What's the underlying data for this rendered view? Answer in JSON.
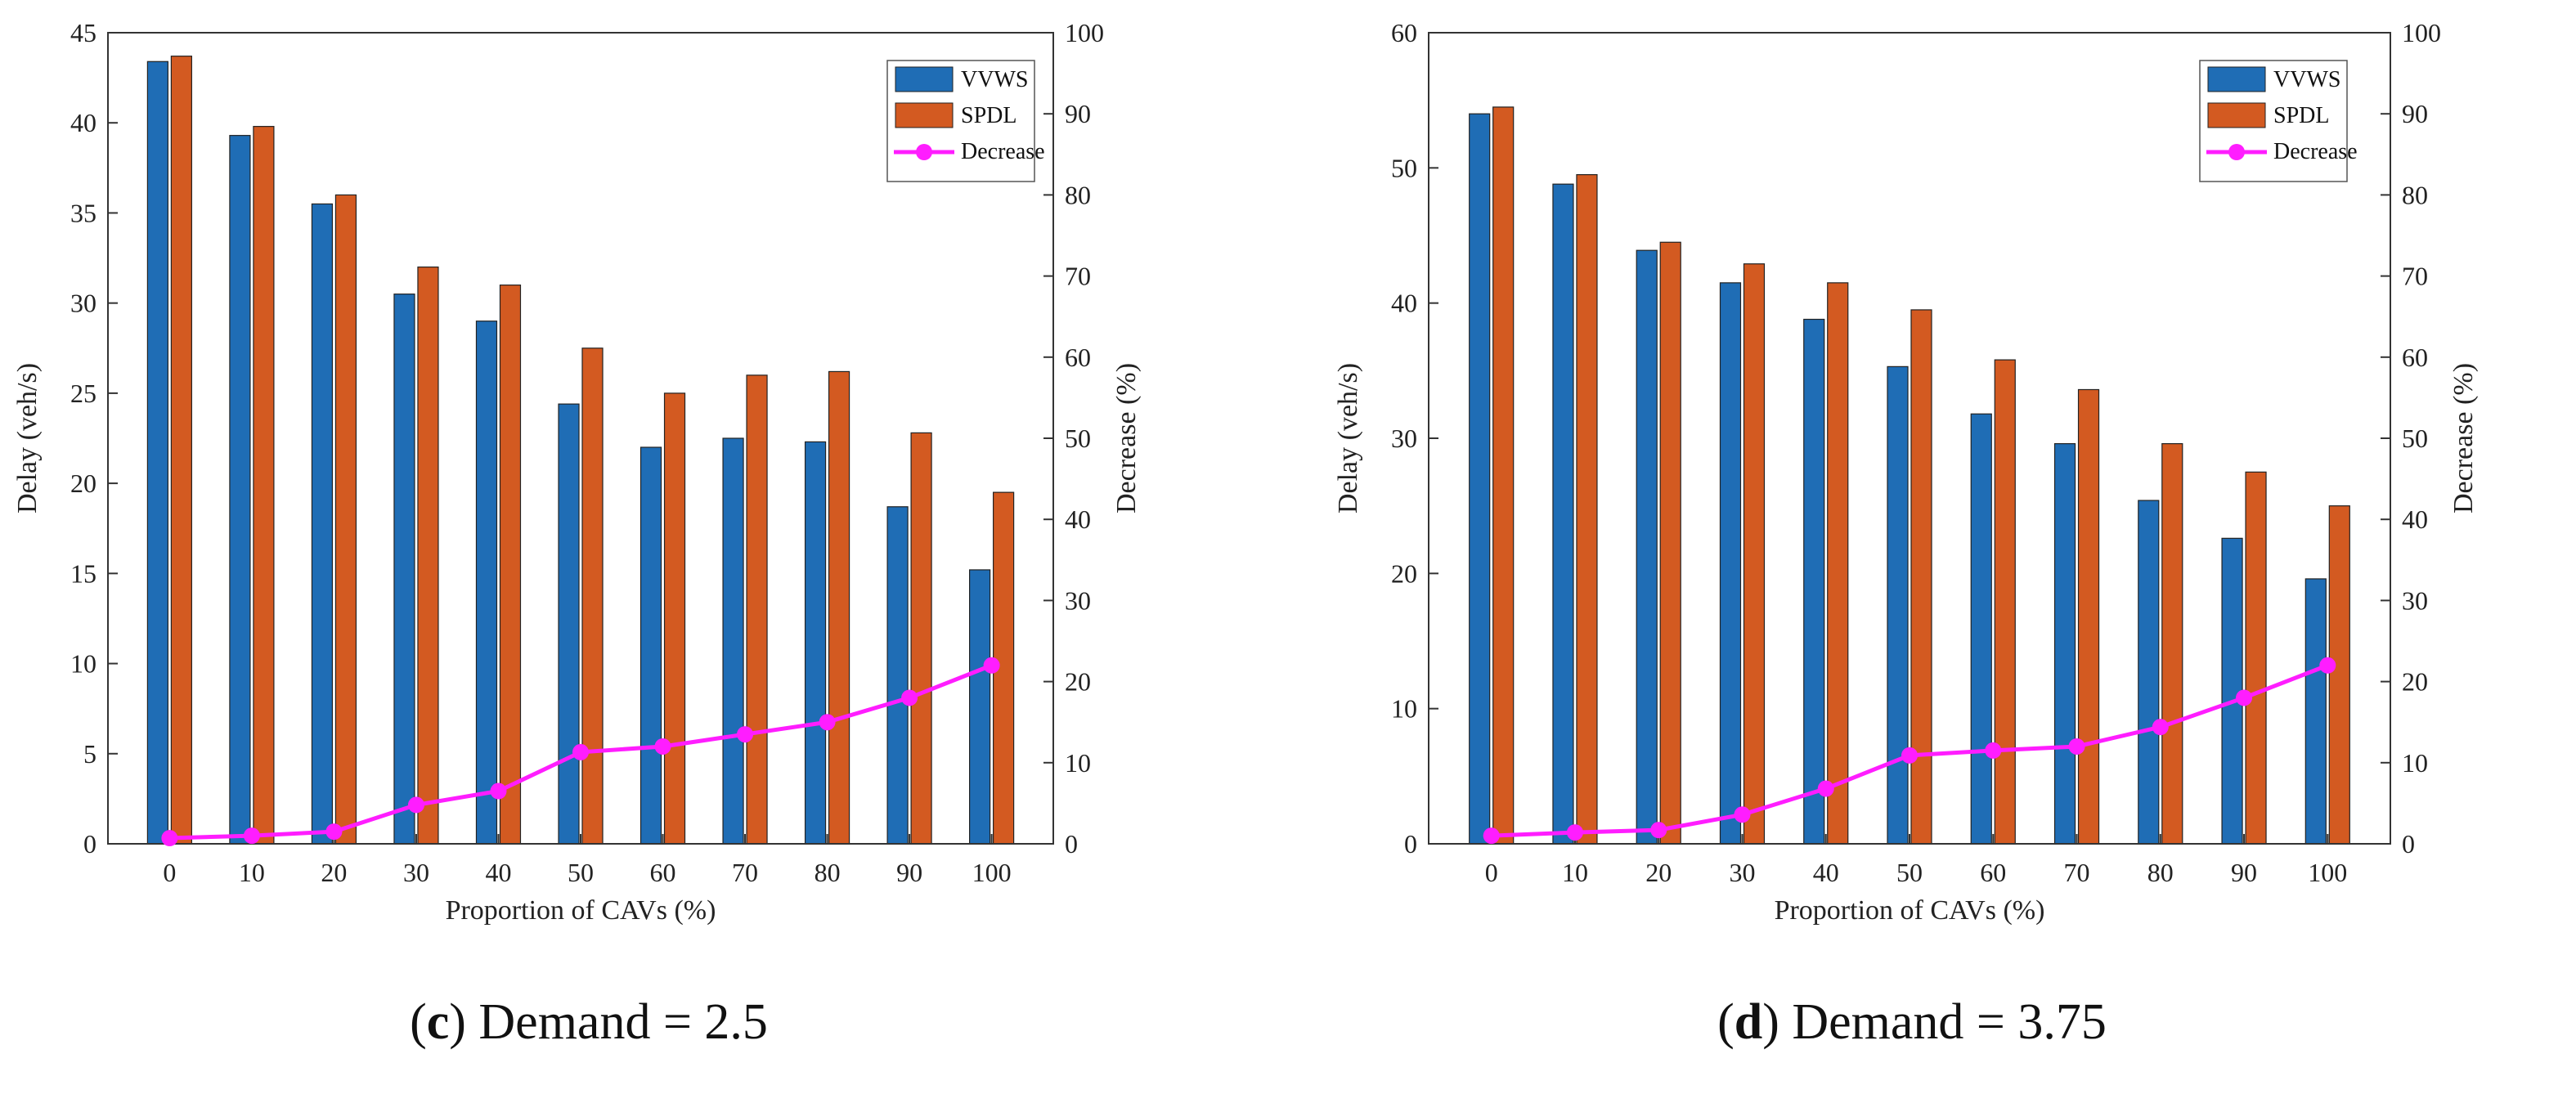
{
  "colors": {
    "vvws": "#1f6db5",
    "spdl": "#d35a21",
    "decrease": "#ff1dff",
    "axis": "#333333"
  },
  "chart_data": [
    {
      "type": "bar",
      "caption_letter": "c",
      "caption_rest": ") Demand = 2.5",
      "caption_open": "(",
      "categories": [
        "0",
        "10",
        "20",
        "30",
        "40",
        "50",
        "60",
        "70",
        "80",
        "90",
        "100"
      ],
      "xlabel": "Proportion of CAVs (%)",
      "ylabel": "Delay (veh/s)",
      "y2label": "Decrease (%)",
      "ylim": [
        0,
        45
      ],
      "yticks": [
        "0",
        "5",
        "10",
        "15",
        "20",
        "25",
        "30",
        "35",
        "40",
        "45"
      ],
      "y2lim": [
        0,
        100
      ],
      "y2ticks": [
        "0",
        "10",
        "20",
        "30",
        "40",
        "50",
        "60",
        "70",
        "80",
        "90",
        "100"
      ],
      "series": [
        {
          "name": "VVWS",
          "values": [
            43.4,
            39.3,
            35.5,
            30.5,
            29.0,
            24.4,
            22.0,
            22.5,
            22.3,
            18.7,
            15.2
          ]
        },
        {
          "name": "SPDL",
          "values": [
            43.7,
            39.8,
            36.0,
            32.0,
            31.0,
            27.5,
            25.0,
            26.0,
            26.2,
            22.8,
            19.5
          ]
        }
      ],
      "line_series": {
        "name": "Decrease",
        "axis": "right",
        "values": [
          0.7,
          1.0,
          1.5,
          4.8,
          6.5,
          11.3,
          12.0,
          13.5,
          15.0,
          18.0,
          22.0
        ]
      },
      "legend": [
        "VVWS",
        "SPDL",
        "Decrease"
      ]
    },
    {
      "type": "bar",
      "caption_letter": "d",
      "caption_rest": ") Demand = 3.75",
      "caption_open": "(",
      "categories": [
        "0",
        "10",
        "20",
        "30",
        "40",
        "50",
        "60",
        "70",
        "80",
        "90",
        "100"
      ],
      "xlabel": "Proportion of CAVs (%)",
      "ylabel": "Delay (veh/s)",
      "y2label": "Decrease (%)",
      "ylim": [
        0,
        60
      ],
      "yticks": [
        "0",
        "10",
        "20",
        "30",
        "40",
        "50",
        "60"
      ],
      "y2lim": [
        0,
        100
      ],
      "y2ticks": [
        "0",
        "10",
        "20",
        "30",
        "40",
        "50",
        "60",
        "70",
        "80",
        "90",
        "100"
      ],
      "series": [
        {
          "name": "VVWS",
          "values": [
            54.0,
            48.8,
            43.9,
            41.5,
            38.8,
            35.3,
            31.8,
            29.6,
            25.4,
            22.6,
            19.6
          ]
        },
        {
          "name": "SPDL",
          "values": [
            54.5,
            49.5,
            44.5,
            42.9,
            41.5,
            39.5,
            35.8,
            33.6,
            29.6,
            27.5,
            25.0
          ]
        }
      ],
      "line_series": {
        "name": "Decrease",
        "axis": "right",
        "values": [
          1.0,
          1.4,
          1.7,
          3.6,
          6.8,
          10.9,
          11.5,
          12.0,
          14.4,
          18.0,
          22.0
        ]
      },
      "legend": [
        "VVWS",
        "SPDL",
        "Decrease"
      ]
    }
  ]
}
